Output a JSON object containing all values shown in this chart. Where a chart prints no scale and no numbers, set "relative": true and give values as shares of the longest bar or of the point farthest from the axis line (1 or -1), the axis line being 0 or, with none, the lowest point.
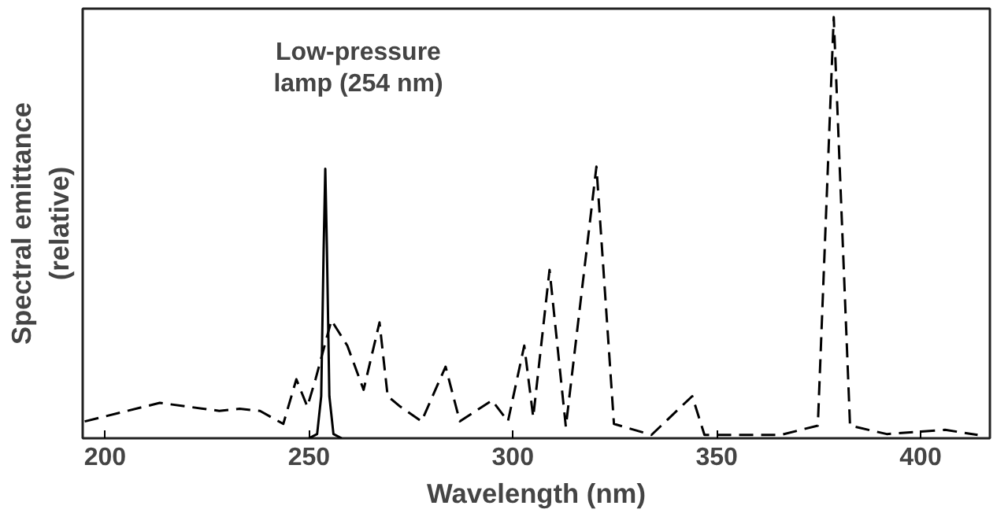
{
  "chart_data": {
    "type": "line",
    "xlabel": "Wavelength (nm)",
    "ylabel": "Spectral emittance\n(relative)",
    "relative": true,
    "xlim": [
      194.5,
      417
    ],
    "xticks": [
      200,
      250,
      300,
      350,
      400
    ],
    "grid": false,
    "series": [
      {
        "color": "#000000",
        "line_style": "dashed",
        "x": [
          195,
          213.4,
          228,
          233,
          238,
          243.7,
          246.9,
          249.6,
          251.6,
          255.5,
          259.4,
          263.4,
          267.3,
          269.3,
          272.4,
          277.6,
          283.5,
          287,
          294.9,
          298.8,
          302.8,
          305,
          309,
          313,
          320.5,
          324.8,
          334,
          344,
          347,
          365.7,
          374.8,
          378.7,
          382.7,
          391.7,
          406,
          414
        ],
        "values": [
          0.04,
          0.084,
          0.065,
          0.07,
          0.065,
          0.034,
          0.14,
          0.075,
          0.14,
          0.28,
          0.22,
          0.115,
          0.275,
          0.1,
          0.075,
          0.04,
          0.17,
          0.04,
          0.09,
          0.04,
          0.22,
          0.05,
          0.4,
          0.027,
          0.645,
          0.034,
          0.008,
          0.1,
          0.008,
          0.008,
          0.03,
          1.0,
          0.03,
          0.01,
          0.02,
          0.008
        ]
      },
      {
        "color": "#000000",
        "line_style": "solid",
        "x": [
          250,
          252,
          253,
          253.6,
          254,
          254.4,
          255,
          256,
          258
        ],
        "values": [
          0,
          0.01,
          0.1,
          0.45,
          0.64,
          0.45,
          0.1,
          0.01,
          0
        ]
      }
    ],
    "annotations": [
      "Low-pressure\nlamp (254 nm)"
    ]
  }
}
